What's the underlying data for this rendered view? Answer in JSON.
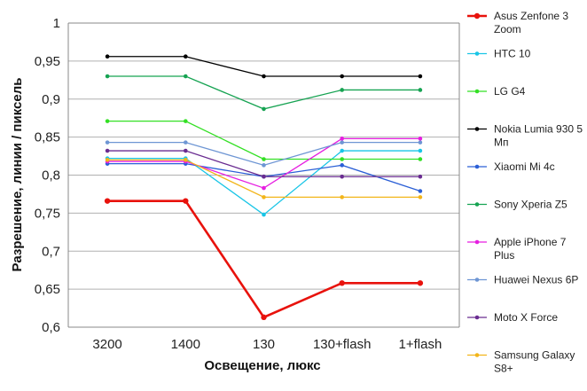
{
  "chart_data": {
    "type": "line",
    "title": "",
    "xlabel": "Освещение,  люкс",
    "ylabel": "Разрешение,  линии / пиксель",
    "categories": [
      "3200",
      "1400",
      "130",
      "130+flash",
      "1+flash"
    ],
    "ylim": [
      0.6,
      1.0
    ],
    "yticks": [
      "0,6",
      "0,65",
      "0,7",
      "0,75",
      "0,8",
      "0,85",
      "0,9",
      "0,95",
      "1"
    ],
    "grid": "horizontal",
    "legend_position": "right",
    "series": [
      {
        "name": "Asus Zenfone 3 Zoom",
        "color": "#e8120c",
        "values": [
          0.766,
          0.766,
          0.613,
          0.658,
          0.658
        ]
      },
      {
        "name": "HTC 10",
        "color": "#19c5e6",
        "values": [
          0.822,
          0.822,
          0.748,
          0.832,
          0.832
        ]
      },
      {
        "name": "LG G4",
        "color": "#33e024",
        "values": [
          0.871,
          0.871,
          0.821,
          0.821,
          0.821
        ]
      },
      {
        "name": "Nokia Lumia 930 5 Мп",
        "color": "#000000",
        "values": [
          0.956,
          0.956,
          0.93,
          0.93,
          0.93
        ]
      },
      {
        "name": "Xiaomi Mi 4c",
        "color": "#2b5fd6",
        "values": [
          0.815,
          0.815,
          0.798,
          0.813,
          0.779
        ]
      },
      {
        "name": "Sony Xperia Z5",
        "color": "#16a352",
        "values": [
          0.93,
          0.93,
          0.887,
          0.912,
          0.912
        ]
      },
      {
        "name": "Apple iPhone 7 Plus",
        "color": "#e61ee0",
        "values": [
          0.818,
          0.818,
          0.783,
          0.848,
          0.848
        ]
      },
      {
        "name": "Huawei Nexus 6P",
        "color": "#6e96d4",
        "values": [
          0.843,
          0.843,
          0.813,
          0.843,
          0.843
        ]
      },
      {
        "name": "Moto X Force",
        "color": "#6a2c91",
        "values": [
          0.832,
          0.832,
          0.798,
          0.798,
          0.798
        ]
      },
      {
        "name": "Samsung Galaxy S8+",
        "color": "#f2b51a",
        "values": [
          0.82,
          0.82,
          0.771,
          0.771,
          0.771
        ]
      }
    ]
  }
}
